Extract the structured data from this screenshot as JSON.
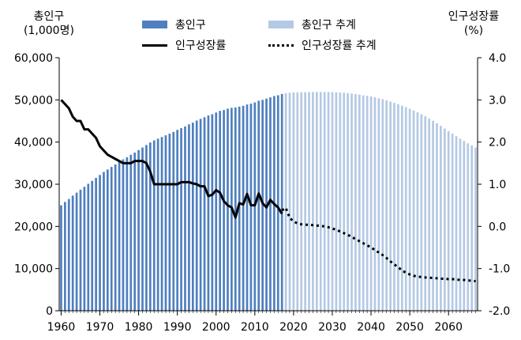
{
  "chart_data": {
    "type": "bar+line",
    "title": "",
    "y_left_title": [
      "총인구",
      "(1,000명)"
    ],
    "y_right_title": [
      "인구성장률",
      "(%)"
    ],
    "x_ticks": [
      "1960",
      "1970",
      "1980",
      "1990",
      "2000",
      "2010",
      "2020",
      "2030",
      "2040",
      "2050",
      "2060"
    ],
    "y_left_ticks": [
      "0",
      "10,000",
      "20,000",
      "30,000",
      "40,000",
      "50,000",
      "60,000"
    ],
    "y_right_ticks": [
      "-2.0",
      "-1.0",
      "0.0",
      "1.0",
      "2.0",
      "3.0",
      "4.0"
    ],
    "x_range": [
      1960,
      2067
    ],
    "ylim_left": [
      0,
      60000
    ],
    "ylim_right": [
      -2.0,
      4.0
    ],
    "grid": false,
    "legend_position": "top",
    "colors": {
      "actual_bar": "#4F7FBF",
      "projection_bar": "#B4C9E4",
      "line": "#000000"
    },
    "legend": [
      {
        "name": "총인구",
        "style": "bar",
        "color": "#4F7FBF"
      },
      {
        "name": "총인구 추계",
        "style": "bar",
        "color": "#B4C9E4"
      },
      {
        "name": "인구성장률",
        "style": "solid-line",
        "color": "#000000"
      },
      {
        "name": "인구성장률 추계",
        "style": "dotted-line",
        "color": "#000000"
      }
    ],
    "series": [
      {
        "name": "총인구",
        "type": "bar",
        "axis": "left",
        "x": [
          1960,
          1961,
          1962,
          1963,
          1964,
          1965,
          1966,
          1967,
          1968,
          1969,
          1970,
          1971,
          1972,
          1973,
          1974,
          1975,
          1976,
          1977,
          1978,
          1979,
          1980,
          1981,
          1982,
          1983,
          1984,
          1985,
          1986,
          1987,
          1988,
          1989,
          1990,
          1991,
          1992,
          1993,
          1994,
          1995,
          1996,
          1997,
          1998,
          1999,
          2000,
          2001,
          2002,
          2003,
          2004,
          2005,
          2006,
          2007,
          2008,
          2009,
          2010,
          2011,
          2012,
          2013,
          2014,
          2015,
          2016,
          2017
        ],
        "values": [
          25000,
          25800,
          26500,
          27300,
          28000,
          28700,
          29400,
          30100,
          30800,
          31500,
          32200,
          32900,
          33500,
          34100,
          34700,
          35300,
          35900,
          36400,
          37000,
          37500,
          38100,
          38700,
          39300,
          39900,
          40400,
          40800,
          41200,
          41600,
          42000,
          42400,
          42900,
          43300,
          43700,
          44200,
          44600,
          45100,
          45500,
          45900,
          46300,
          46600,
          47000,
          47400,
          47600,
          47900,
          48100,
          48200,
          48400,
          48600,
          48900,
          49100,
          49400,
          49800,
          50000,
          50300,
          50600,
          50900,
          51100,
          51400
        ]
      },
      {
        "name": "총인구 추계",
        "type": "bar",
        "axis": "left",
        "x": [
          2018,
          2019,
          2020,
          2021,
          2022,
          2023,
          2024,
          2025,
          2026,
          2027,
          2028,
          2029,
          2030,
          2031,
          2032,
          2033,
          2034,
          2035,
          2036,
          2037,
          2038,
          2039,
          2040,
          2041,
          2042,
          2043,
          2044,
          2045,
          2046,
          2047,
          2048,
          2049,
          2050,
          2051,
          2052,
          2053,
          2054,
          2055,
          2056,
          2057,
          2058,
          2059,
          2060,
          2061,
          2062,
          2063,
          2064,
          2065,
          2066,
          2067
        ],
        "values": [
          51600,
          51700,
          51750,
          51780,
          51800,
          51820,
          51840,
          51860,
          51870,
          51880,
          51880,
          51870,
          51850,
          51800,
          51750,
          51700,
          51600,
          51500,
          51380,
          51250,
          51100,
          50950,
          50800,
          50600,
          50380,
          50150,
          49900,
          49600,
          49300,
          48980,
          48650,
          48300,
          47900,
          47500,
          47050,
          46600,
          46100,
          45600,
          45050,
          44450,
          43850,
          43200,
          42600,
          42000,
          41400,
          40800,
          40250,
          39700,
          39200,
          38700
        ]
      },
      {
        "name": "인구성장률",
        "type": "line",
        "axis": "right",
        "x": [
          1960,
          1961,
          1962,
          1963,
          1964,
          1965,
          1966,
          1967,
          1968,
          1969,
          1970,
          1971,
          1972,
          1973,
          1974,
          1975,
          1976,
          1977,
          1978,
          1979,
          1980,
          1981,
          1982,
          1983,
          1984,
          1985,
          1986,
          1987,
          1988,
          1989,
          1990,
          1991,
          1992,
          1993,
          1994,
          1995,
          1996,
          1997,
          1998,
          1999,
          2000,
          2001,
          2002,
          2003,
          2004,
          2005,
          2006,
          2007,
          2008,
          2009,
          2010,
          2011,
          2012,
          2013,
          2014,
          2015,
          2016,
          2017
        ],
        "values": [
          3.0,
          2.9,
          2.8,
          2.6,
          2.5,
          2.5,
          2.3,
          2.3,
          2.2,
          2.1,
          1.9,
          1.8,
          1.7,
          1.65,
          1.6,
          1.55,
          1.5,
          1.5,
          1.5,
          1.55,
          1.55,
          1.55,
          1.5,
          1.3,
          1.0,
          1.0,
          1.0,
          1.0,
          1.0,
          1.0,
          1.0,
          1.05,
          1.05,
          1.05,
          1.02,
          1.0,
          0.95,
          0.95,
          0.72,
          0.75,
          0.86,
          0.8,
          0.6,
          0.5,
          0.45,
          0.21,
          0.55,
          0.52,
          0.77,
          0.5,
          0.5,
          0.78,
          0.55,
          0.45,
          0.63,
          0.53,
          0.45,
          0.3
        ]
      },
      {
        "name": "인구성장률 추계",
        "type": "line",
        "axis": "right",
        "x": [
          2017,
          2018,
          2019,
          2020,
          2021,
          2022,
          2023,
          2024,
          2025,
          2026,
          2027,
          2028,
          2029,
          2030,
          2031,
          2032,
          2033,
          2034,
          2035,
          2036,
          2037,
          2038,
          2039,
          2040,
          2041,
          2042,
          2043,
          2044,
          2045,
          2046,
          2047,
          2048,
          2049,
          2050,
          2051,
          2052,
          2053,
          2054,
          2055,
          2056,
          2057,
          2058,
          2059,
          2060,
          2061,
          2062,
          2063,
          2064,
          2065,
          2066,
          2067
        ],
        "values": [
          0.38,
          0.44,
          0.2,
          0.12,
          0.07,
          0.05,
          0.04,
          0.04,
          0.03,
          0.02,
          0.01,
          0.0,
          -0.02,
          -0.05,
          -0.08,
          -0.12,
          -0.16,
          -0.2,
          -0.25,
          -0.3,
          -0.35,
          -0.4,
          -0.45,
          -0.5,
          -0.56,
          -0.62,
          -0.68,
          -0.75,
          -0.83,
          -0.9,
          -0.97,
          -1.04,
          -1.1,
          -1.14,
          -1.17,
          -1.19,
          -1.2,
          -1.21,
          -1.22,
          -1.22,
          -1.23,
          -1.24,
          -1.24,
          -1.25,
          -1.25,
          -1.26,
          -1.27,
          -1.27,
          -1.28,
          -1.29,
          -1.3
        ]
      }
    ]
  }
}
